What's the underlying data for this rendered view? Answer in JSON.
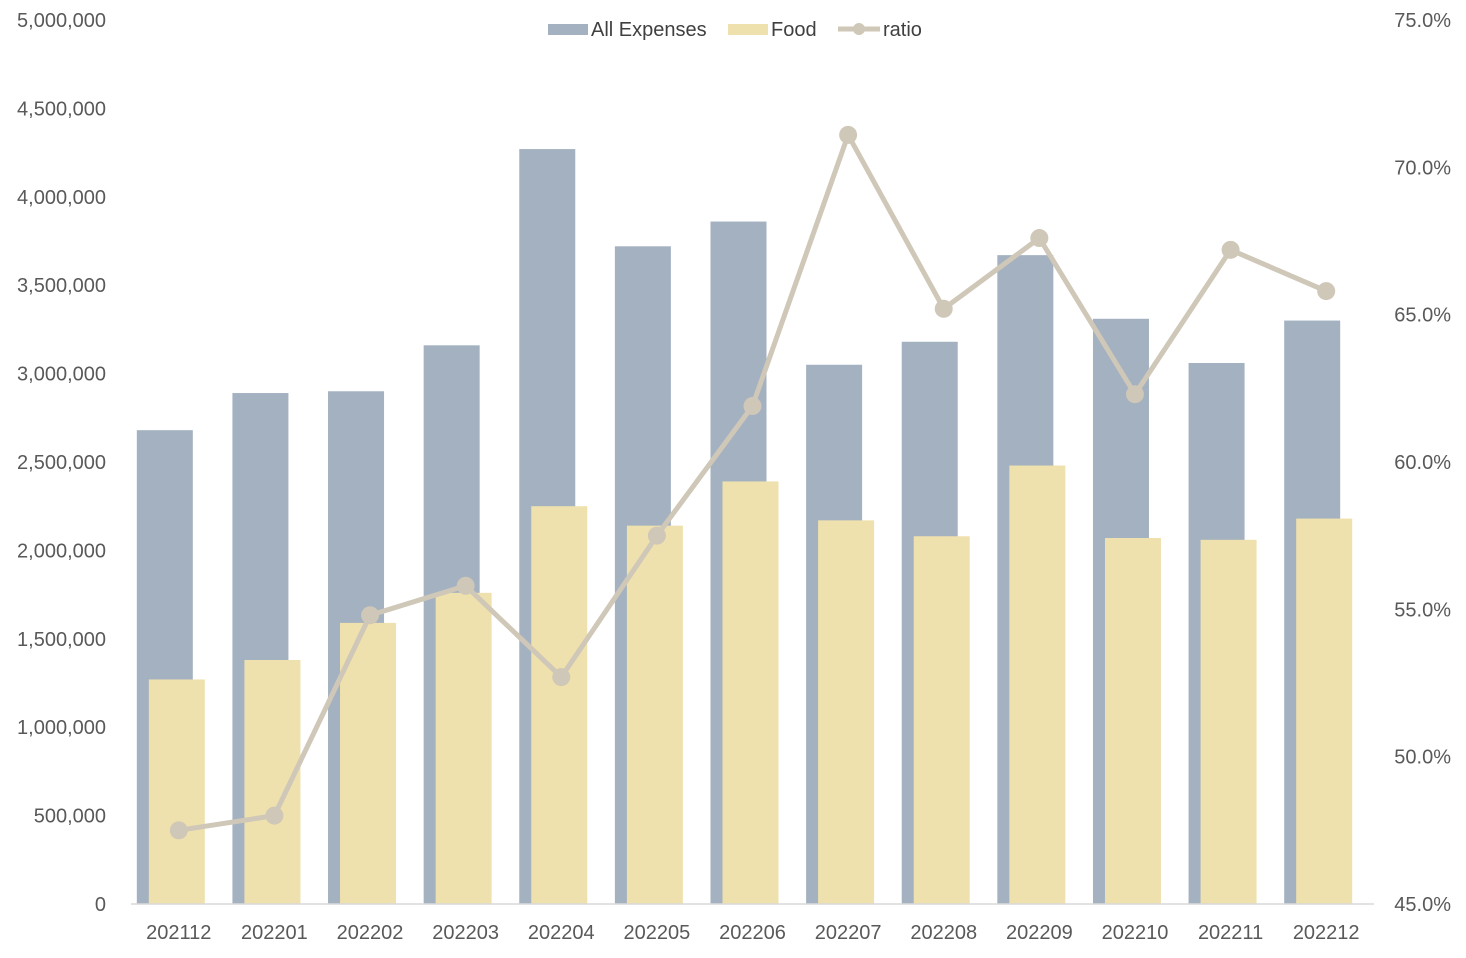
{
  "chart_data": {
    "type": "bar",
    "categories": [
      "202112",
      "202201",
      "202202",
      "202203",
      "202204",
      "202205",
      "202206",
      "202207",
      "202208",
      "202209",
      "202210",
      "202211",
      "202212"
    ],
    "series": [
      {
        "name": "All Expenses",
        "type": "bar",
        "axis": "left",
        "color": "#a3b1c0",
        "values": [
          2680000,
          2890000,
          2900000,
          3160000,
          4270000,
          3720000,
          3860000,
          3050000,
          3180000,
          3670000,
          3310000,
          3060000,
          3300000
        ]
      },
      {
        "name": "Food",
        "type": "bar",
        "axis": "left",
        "color": "#efe1ad",
        "values": [
          1270000,
          1380000,
          1590000,
          1760000,
          2250000,
          2140000,
          2390000,
          2170000,
          2080000,
          2480000,
          2070000,
          2060000,
          2180000
        ]
      },
      {
        "name": "ratio",
        "type": "line",
        "axis": "right",
        "color": "#cfc7b7",
        "values": [
          0.475,
          0.48,
          0.548,
          0.558,
          0.527,
          0.575,
          0.619,
          0.711,
          0.652,
          0.676,
          0.623,
          0.672,
          0.658
        ]
      }
    ],
    "y_left": {
      "min": 0,
      "max": 5000000,
      "ticks": [
        "0",
        "500,000",
        "1,000,000",
        "1,500,000",
        "2,000,000",
        "2,500,000",
        "3,000,000",
        "3,500,000",
        "4,000,000",
        "4,500,000",
        "5,000,000"
      ]
    },
    "y_right": {
      "min": 0.45,
      "max": 0.75,
      "ticks": [
        "45.0%",
        "50.0%",
        "55.0%",
        "60.0%",
        "65.0%",
        "70.0%",
        "75.0%"
      ]
    },
    "legend": {
      "position": "top-center",
      "items": [
        "All Expenses",
        "Food",
        "ratio"
      ]
    },
    "title": "",
    "xlabel": "",
    "ylabel": "",
    "grid": false
  }
}
